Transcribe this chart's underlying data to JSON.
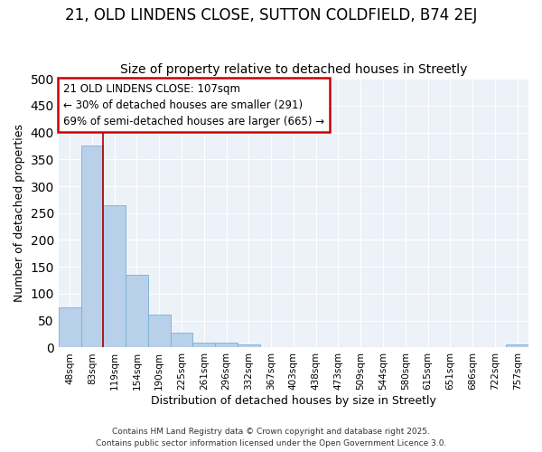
{
  "title": "21, OLD LINDENS CLOSE, SUTTON COLDFIELD, B74 2EJ",
  "subtitle": "Size of property relative to detached houses in Streetly",
  "xlabel": "Distribution of detached houses by size in Streetly",
  "ylabel": "Number of detached properties",
  "categories": [
    "48sqm",
    "83sqm",
    "119sqm",
    "154sqm",
    "190sqm",
    "225sqm",
    "261sqm",
    "296sqm",
    "332sqm",
    "367sqm",
    "403sqm",
    "438sqm",
    "473sqm",
    "509sqm",
    "544sqm",
    "580sqm",
    "615sqm",
    "651sqm",
    "686sqm",
    "722sqm",
    "757sqm"
  ],
  "values": [
    75,
    375,
    265,
    135,
    62,
    28,
    10,
    10,
    5,
    0,
    0,
    0,
    0,
    0,
    0,
    0,
    0,
    0,
    0,
    0,
    5
  ],
  "bar_color": "#b8d0ea",
  "bar_edge_color": "#7aafd4",
  "vline_color": "#aa0000",
  "annotation_line1": "21 OLD LINDENS CLOSE: 107sqm",
  "annotation_line2": "← 30% of detached houses are smaller (291)",
  "annotation_line3": "69% of semi-detached houses are larger (665) →",
  "annotation_box_color": "#cc0000",
  "background_color": "#ffffff",
  "plot_bg_color": "#edf2f9",
  "ylim": [
    0,
    500
  ],
  "yticks": [
    0,
    50,
    100,
    150,
    200,
    250,
    300,
    350,
    400,
    450,
    500
  ],
  "title_fontsize": 12,
  "subtitle_fontsize": 10,
  "footer_line1": "Contains HM Land Registry data © Crown copyright and database right 2025.",
  "footer_line2": "Contains public sector information licensed under the Open Government Licence 3.0."
}
